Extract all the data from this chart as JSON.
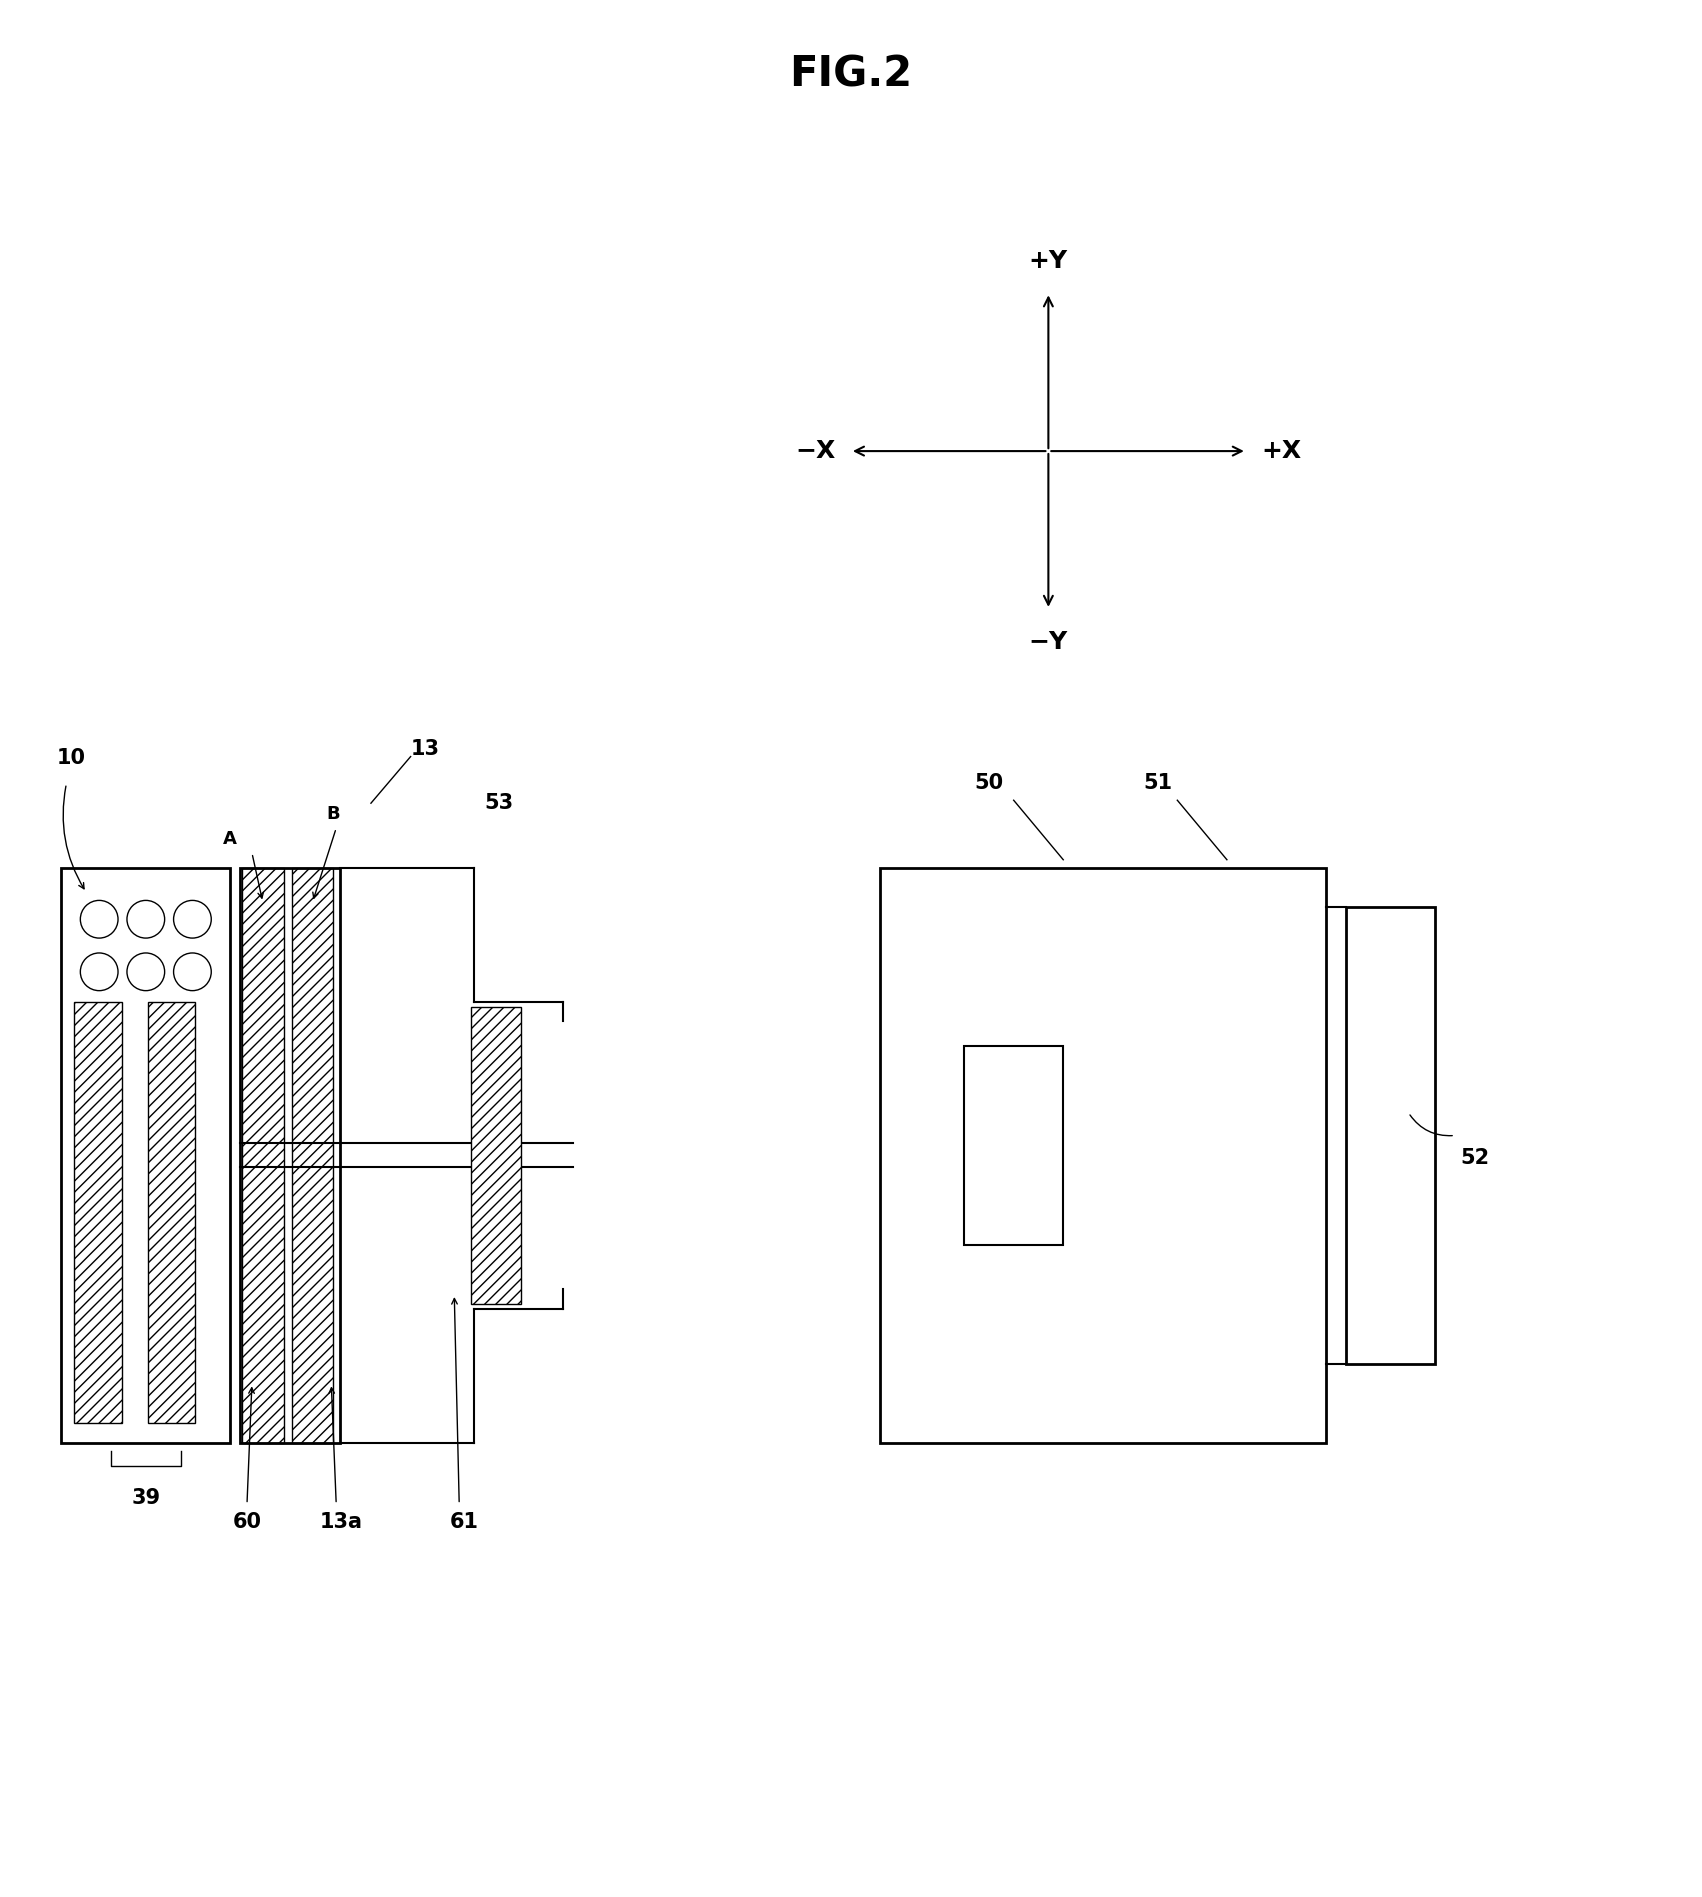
{
  "title": "FIG.2",
  "bg_color": "#ffffff",
  "fig_width": 17.02,
  "fig_height": 18.97,
  "labels": {
    "title": "FIG.2",
    "plus_y": "+Y",
    "minus_y": "−Y",
    "plus_x": "+X",
    "minus_x": "−X",
    "label_10": "10",
    "label_13": "13",
    "label_39": "39",
    "label_60": "60",
    "label_13a": "13a",
    "label_61": "61",
    "label_A": "A",
    "label_B": "B",
    "label_50": "50",
    "label_51": "51",
    "label_52": "52",
    "label_53": "53"
  }
}
